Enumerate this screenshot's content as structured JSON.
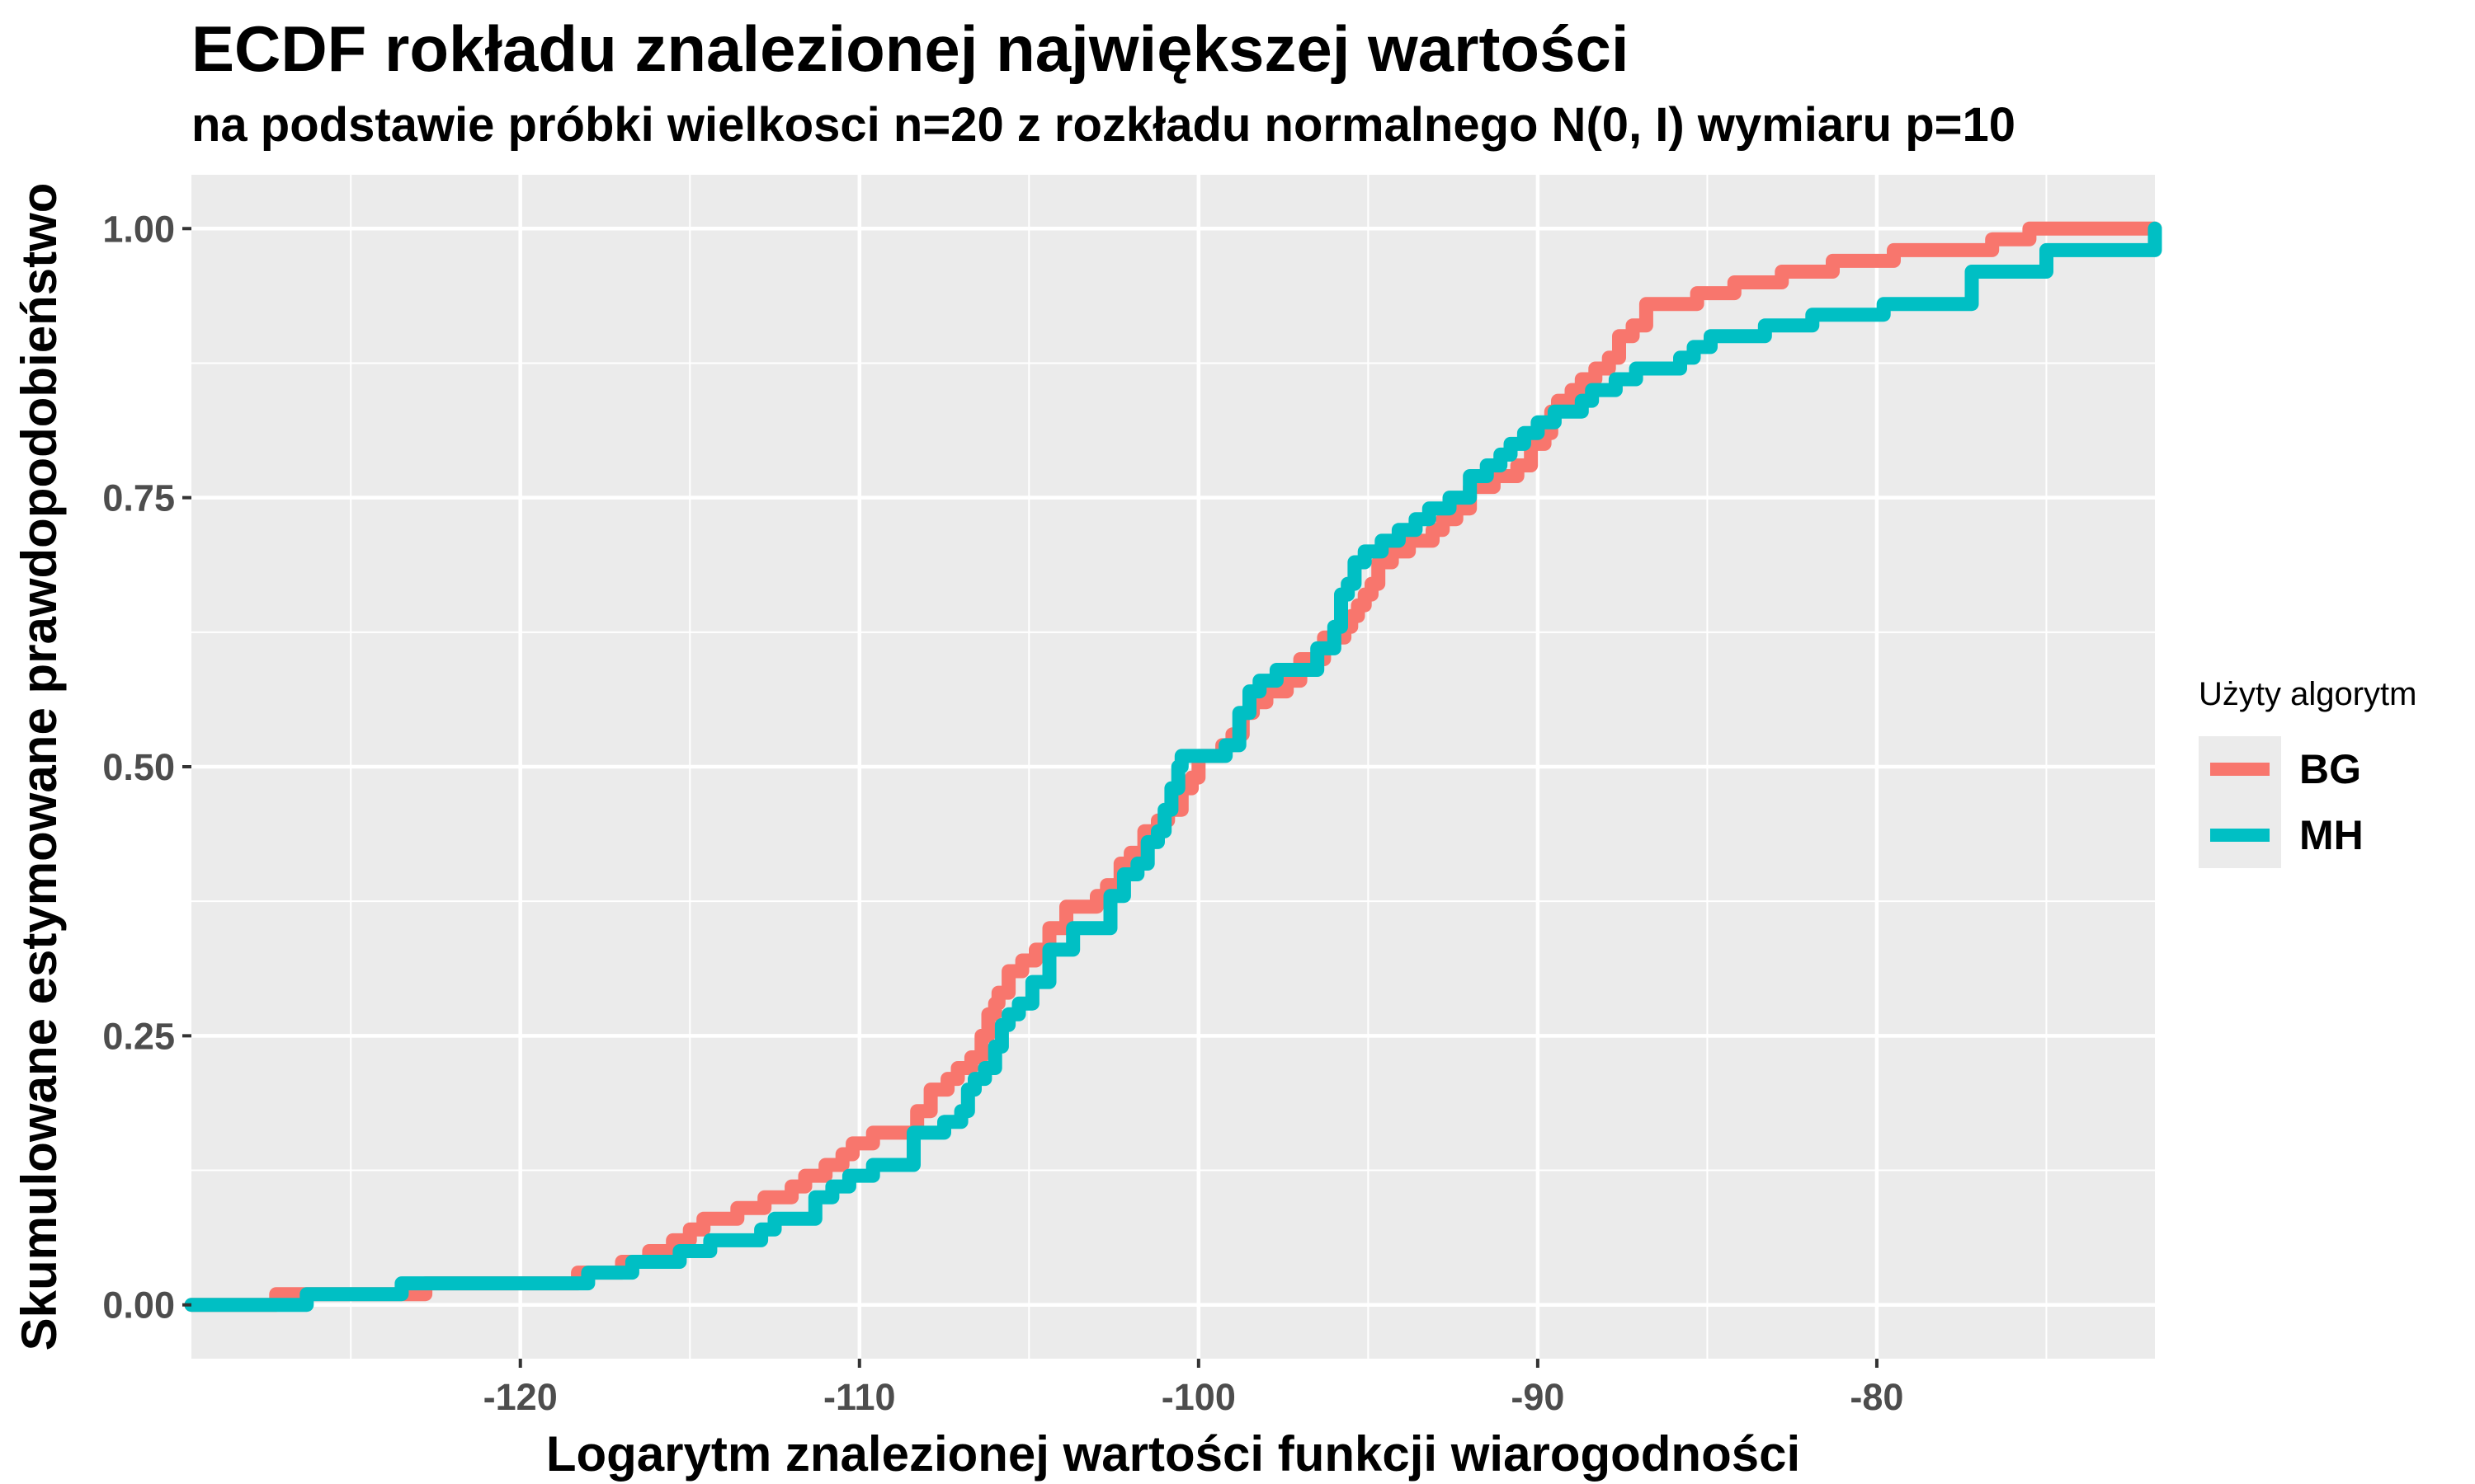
{
  "title": "ECDF rokładu znalezionej największej wartości",
  "subtitle": "na podstawie próbki wielkosci n=20 z rozkładu normalnego N(0, I) wymiaru p=10",
  "chart_data": {
    "type": "line",
    "step": true,
    "title": "ECDF rokładu znalezionej największej wartości",
    "subtitle": "na podstawie próbki wielkosci n=20 z rozkładu normalnego N(0, I) wymiaru p=10",
    "xlabel": "Logarytm znalezionej wartości funkcji wiarogodności",
    "ylabel": "Skumulowane estymowane prawdopodobieństwo",
    "xlim": [
      -129.7,
      -71.8
    ],
    "ylim": [
      -0.05,
      1.05
    ],
    "x_ticks": [
      -120,
      -110,
      -100,
      -90,
      -80
    ],
    "x_tick_labels": [
      "-120",
      "-110",
      "-100",
      "-90",
      "-80"
    ],
    "y_ticks": [
      0,
      0.25,
      0.5,
      0.75,
      1.0
    ],
    "y_tick_labels": [
      "0.00",
      "0.25",
      "0.50",
      "0.75",
      "1.00"
    ],
    "grid": true,
    "background": "#ebebeb",
    "legend": {
      "title": "Użyty algorytm",
      "position": "right"
    },
    "series": [
      {
        "name": "BG",
        "color": "#F8766D",
        "x": [
          -129.7,
          -127.2,
          -126.5,
          -123.8,
          -122.8,
          -118.3,
          -117.0,
          -116.2,
          -115.5,
          -115.0,
          -114.6,
          -113.6,
          -112.8,
          -112.0,
          -111.6,
          -111.0,
          -110.5,
          -110.2,
          -109.6,
          -108.3,
          -107.9,
          -107.4,
          -107.1,
          -106.7,
          -106.4,
          -106.2,
          -106.0,
          -105.9,
          -105.6,
          -105.2,
          -104.8,
          -104.4,
          -103.9,
          -103.0,
          -102.7,
          -102.3,
          -102.0,
          -101.6,
          -101.2,
          -100.9,
          -100.5,
          -100.2,
          -100.0,
          -99.3,
          -99.0,
          -98.7,
          -98.4,
          -98.0,
          -97.4,
          -97.0,
          -96.3,
          -95.7,
          -95.5,
          -95.3,
          -95.1,
          -94.9,
          -94.7,
          -94.3,
          -93.8,
          -93.1,
          -92.8,
          -92.4,
          -92.0,
          -91.3,
          -90.6,
          -90.2,
          -89.8,
          -89.6,
          -89.4,
          -89.0,
          -88.7,
          -88.3,
          -87.9,
          -87.6,
          -87.2,
          -86.8,
          -85.3,
          -84.2,
          -82.8,
          -81.3,
          -79.5,
          -78.0,
          -76.6,
          -75.5,
          -71.8
        ],
        "y": [
          0,
          0.01,
          0.01,
          0.01,
          0.02,
          0.03,
          0.04,
          0.05,
          0.06,
          0.07,
          0.08,
          0.09,
          0.1,
          0.11,
          0.12,
          0.13,
          0.14,
          0.15,
          0.16,
          0.18,
          0.2,
          0.21,
          0.22,
          0.23,
          0.25,
          0.27,
          0.28,
          0.29,
          0.31,
          0.32,
          0.33,
          0.35,
          0.37,
          0.38,
          0.39,
          0.41,
          0.42,
          0.44,
          0.45,
          0.46,
          0.48,
          0.49,
          0.51,
          0.52,
          0.53,
          0.55,
          0.56,
          0.57,
          0.58,
          0.6,
          0.62,
          0.63,
          0.64,
          0.65,
          0.66,
          0.67,
          0.69,
          0.7,
          0.71,
          0.72,
          0.73,
          0.74,
          0.76,
          0.77,
          0.78,
          0.8,
          0.81,
          0.83,
          0.84,
          0.85,
          0.86,
          0.87,
          0.88,
          0.9,
          0.91,
          0.93,
          0.94,
          0.95,
          0.96,
          0.97,
          0.98,
          0.98,
          0.99,
          1.0,
          1.0
        ]
      },
      {
        "name": "MH",
        "color": "#00BFC4",
        "x": [
          -129.7,
          -126.3,
          -123.5,
          -118.0,
          -116.7,
          -115.3,
          -114.4,
          -112.9,
          -112.5,
          -111.3,
          -110.8,
          -110.3,
          -109.6,
          -108.4,
          -107.5,
          -107.0,
          -106.8,
          -106.6,
          -106.3,
          -106.0,
          -105.8,
          -105.6,
          -105.3,
          -104.9,
          -104.4,
          -103.7,
          -102.6,
          -102.2,
          -101.8,
          -101.5,
          -101.2,
          -101.0,
          -100.8,
          -100.6,
          -100.5,
          -99.2,
          -98.8,
          -98.5,
          -98.2,
          -97.7,
          -96.5,
          -96.0,
          -95.8,
          -95.6,
          -95.4,
          -95.1,
          -94.6,
          -94.1,
          -93.6,
          -93.2,
          -92.6,
          -92.0,
          -91.5,
          -91.1,
          -90.8,
          -90.4,
          -90.0,
          -89.5,
          -88.7,
          -88.4,
          -87.7,
          -87.1,
          -85.8,
          -85.4,
          -84.9,
          -83.3,
          -81.9,
          -79.8,
          -77.2,
          -75.0,
          -71.8
        ],
        "y": [
          0,
          0.01,
          0.02,
          0.03,
          0.04,
          0.05,
          0.06,
          0.07,
          0.08,
          0.1,
          0.11,
          0.12,
          0.13,
          0.16,
          0.17,
          0.18,
          0.2,
          0.21,
          0.22,
          0.24,
          0.26,
          0.27,
          0.28,
          0.3,
          0.33,
          0.35,
          0.38,
          0.4,
          0.41,
          0.43,
          0.44,
          0.46,
          0.48,
          0.5,
          0.51,
          0.52,
          0.55,
          0.57,
          0.58,
          0.59,
          0.61,
          0.63,
          0.66,
          0.67,
          0.69,
          0.7,
          0.71,
          0.72,
          0.73,
          0.74,
          0.75,
          0.77,
          0.78,
          0.79,
          0.8,
          0.81,
          0.82,
          0.83,
          0.84,
          0.85,
          0.86,
          0.87,
          0.88,
          0.89,
          0.9,
          0.91,
          0.92,
          0.93,
          0.96,
          0.98,
          1.0
        ]
      }
    ]
  }
}
